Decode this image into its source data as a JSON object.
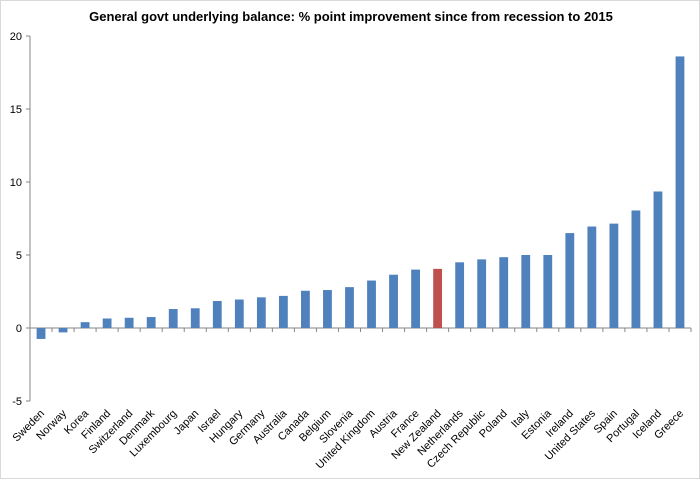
{
  "chart_data": {
    "type": "bar",
    "title": "General govt underlying balance: % point improvement since from recession to 2015",
    "xlabel": "",
    "ylabel": "",
    "ylim": [
      -5,
      20
    ],
    "yticks": [
      -5,
      0,
      5,
      10,
      15,
      20
    ],
    "grid": false,
    "legend": "none",
    "categories": [
      "Sweden",
      "Norway",
      "Korea",
      "Finland",
      "Switzerland",
      "Denmark",
      "Luxembourg",
      "Japan",
      "Israel",
      "Hungary",
      "Germany",
      "Australia",
      "Canada",
      "Belgium",
      "Slovenia",
      "United Kingdom",
      "Austria",
      "France",
      "New Zealand",
      "Netherlands",
      "Czech Republic",
      "Poland",
      "Italy",
      "Estonia",
      "Ireland",
      "United States",
      "Spain",
      "Portugal",
      "Iceland",
      "Greece"
    ],
    "values": [
      -0.75,
      -0.3,
      0.4,
      0.65,
      0.7,
      0.75,
      1.3,
      1.35,
      1.85,
      1.95,
      2.1,
      2.2,
      2.55,
      2.6,
      2.8,
      3.25,
      3.65,
      4.0,
      4.05,
      4.5,
      4.7,
      4.85,
      5.0,
      5.0,
      6.5,
      6.95,
      7.15,
      8.05,
      9.35,
      18.6
    ],
    "colors": {
      "default": "#4f81bd",
      "highlight": "#c0504d"
    },
    "highlight_category": "New Zealand"
  }
}
